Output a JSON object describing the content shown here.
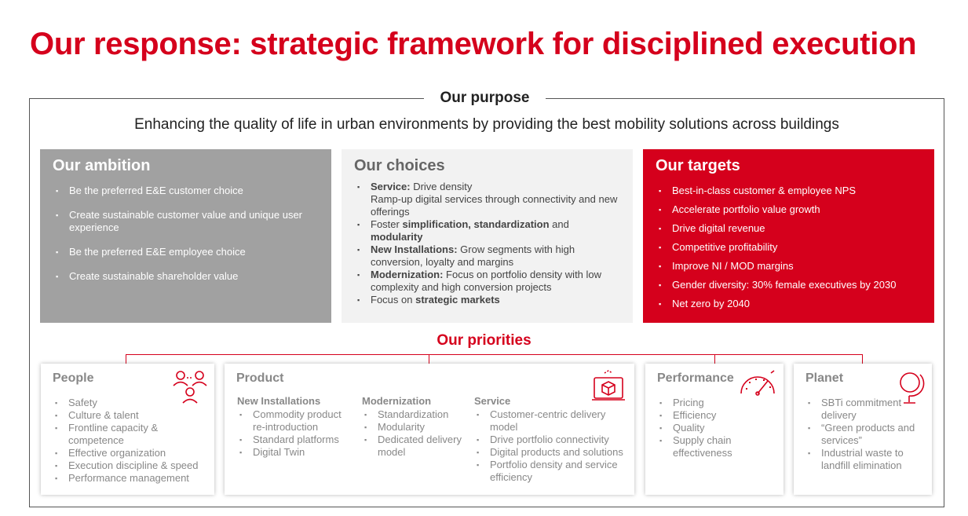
{
  "title": "Our response: strategic framework for disciplined execution",
  "purpose": {
    "label": "Our purpose",
    "text": "Enhancing the quality of life in urban environments by providing the best mobility solutions across buildings"
  },
  "ambition": {
    "heading": "Our ambition",
    "items": [
      "Be the preferred E&E customer choice",
      "Create sustainable customer value and unique user experience",
      "Be the preferred E&E employee choice",
      "Create sustainable shareholder value"
    ]
  },
  "choices": {
    "heading": "Our choices",
    "items": [
      {
        "bold": "Service:",
        "text": " Drive density",
        "extra": "Ramp-up digital services through connectivity and new offerings"
      },
      {
        "pre": "Foster ",
        "bold": "simplification, standardization",
        "text": " and",
        "bold2": "modularity"
      },
      {
        "bold": "New Installations:",
        "text": " Grow segments with high conversion, loyalty and margins"
      },
      {
        "bold": "Modernization:",
        "text": " Focus on portfolio density with low complexity and high conversion projects"
      },
      {
        "pre": "Focus on ",
        "bold": "strategic markets"
      }
    ]
  },
  "targets": {
    "heading": "Our targets",
    "items": [
      "Best-in-class customer & employee NPS",
      "Accelerate portfolio value growth",
      "Drive digital revenue",
      "Competitive profitability",
      "Improve NI / MOD margins",
      "Gender diversity: 30% female executives by 2030",
      "Net zero by 2040"
    ]
  },
  "priorities": {
    "label": "Our priorities",
    "people": {
      "heading": "People",
      "icon": "people-icon",
      "items": [
        "Safety",
        "Culture & talent",
        "Frontline capacity & competence",
        "Effective organization",
        "Execution discipline & speed",
        "Performance management"
      ]
    },
    "product": {
      "heading": "Product",
      "icon": "product-box-icon",
      "columns": [
        {
          "heading": "New Installations",
          "items": [
            "Commodity product re-introduction",
            "Standard platforms",
            "Digital Twin"
          ]
        },
        {
          "heading": "Modernization",
          "items": [
            "Standardization",
            "Modularity",
            "Dedicated delivery model"
          ]
        },
        {
          "heading": "Service",
          "items": [
            "Customer-centric delivery model",
            "Drive portfolio connectivity",
            "Digital products and solutions",
            "Portfolio density and service efficiency"
          ]
        }
      ]
    },
    "performance": {
      "heading": "Performance",
      "icon": "gauge-icon",
      "items": [
        "Pricing",
        "Efficiency",
        "Quality",
        "Supply chain effectiveness"
      ]
    },
    "planet": {
      "heading": "Planet",
      "icon": "globe-icon",
      "items": [
        "SBTi commitment delivery",
        "“Green products and services”",
        "Industrial waste to landfill elimination"
      ]
    }
  },
  "colors": {
    "accent": "#d5001c",
    "grey_panel": "#a1a1a1",
    "light_panel": "#f2f2f2"
  }
}
